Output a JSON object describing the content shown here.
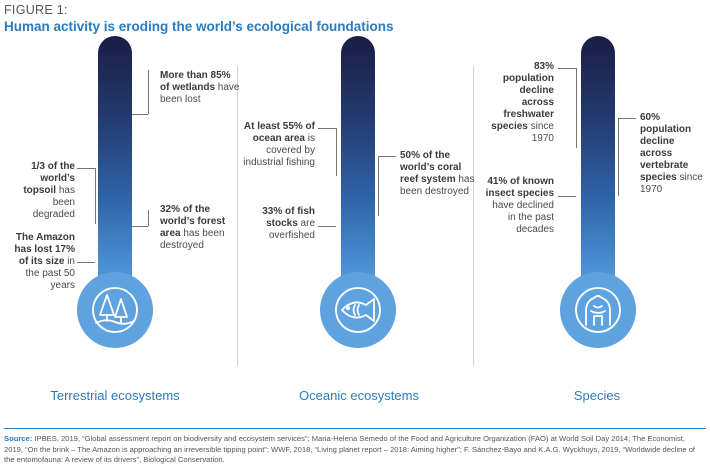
{
  "figure": {
    "label": "FIGURE 1:",
    "title": "Human activity is eroding the world’s ecological foundations"
  },
  "columns": [
    {
      "category": "Terrestrial ecosystems",
      "icon": "trees-icon",
      "annotations": [
        {
          "bold": "More than 85% of wetlands",
          "text": "have been lost"
        },
        {
          "bold": "1/3 of the world’s topsoil",
          "text": "has been degraded"
        },
        {
          "bold": "32% of the world’s forest area",
          "text": "has been destroyed"
        },
        {
          "bold": "The Amazon has lost 17% of its size",
          "text": "in the past 50 years"
        }
      ]
    },
    {
      "category": "Oceanic ecosystems",
      "icon": "fish-icon",
      "annotations": [
        {
          "bold": "At least 55% of ocean area",
          "text": "is covered by industrial fishing"
        },
        {
          "bold": "50% of the world’s coral reef system",
          "text": "has been destroyed"
        },
        {
          "bold": "33% of fish stocks",
          "text": "are overfished"
        }
      ]
    },
    {
      "category": "Species",
      "icon": "gorilla-icon",
      "annotations": [
        {
          "bold": "83% population decline across freshwater species",
          "text": "since 1970"
        },
        {
          "bold": "60% population decline across vertebrate species",
          "text": "since 1970"
        },
        {
          "bold": "41% of known insect species",
          "text": "have declined in the past decades"
        }
      ]
    }
  ],
  "source": {
    "label": "Source:",
    "text": "IPBES, 2019, “Global assessment report on biodiversity and ecosystem services”; Maria-Helena Semedo of the Food and Agriculture Organization (FAO) at World Soil Day 2014; The Economist, 2019, “On the brink – The Amazon is approaching an irreversible tipping point”; WWF, 2018, “Living planet report – 2018: Aiming higher”; F. Sánchez-Bayo and K.A.G. Wyckhuys, 2019, “Worldwide decline of the entomofauna: A review of its drivers”, Biological Conservation."
  }
}
